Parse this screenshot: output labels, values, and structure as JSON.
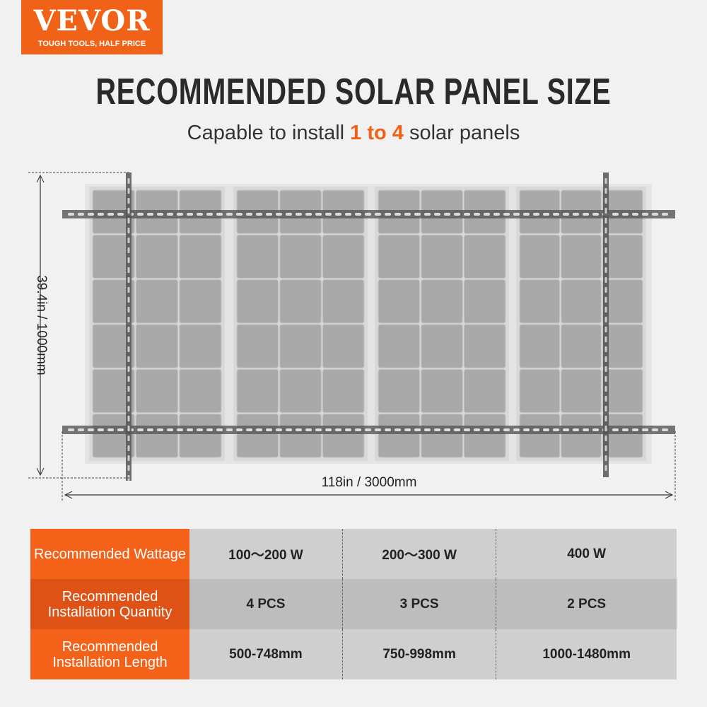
{
  "logo": {
    "brand": "VEVOR",
    "tagline": "TOUGH TOOLS, HALF PRICE"
  },
  "title": "RECOMMENDED SOLAR PANEL SIZE",
  "subtitle": {
    "before": "Capable to install ",
    "highlight": "1 to 4",
    "after": " solar panels"
  },
  "dimensions": {
    "height": "39.4in / 1000mm",
    "width": "118in / 3000mm"
  },
  "colors": {
    "accent": "#f06217",
    "accent_dark": "#de5315"
  },
  "table": {
    "rows": [
      {
        "label": "Recommended Wattage",
        "values": [
          "100～200 W",
          "200～300 W",
          "400 W"
        ]
      },
      {
        "label": "Recommended Installation Quantity",
        "values": [
          "4 PCS",
          "3 PCS",
          "2 PCS"
        ]
      },
      {
        "label": "Recommended Installation Length",
        "values": [
          "500-748mm",
          "750-998mm",
          "1000-1480mm"
        ]
      }
    ]
  }
}
